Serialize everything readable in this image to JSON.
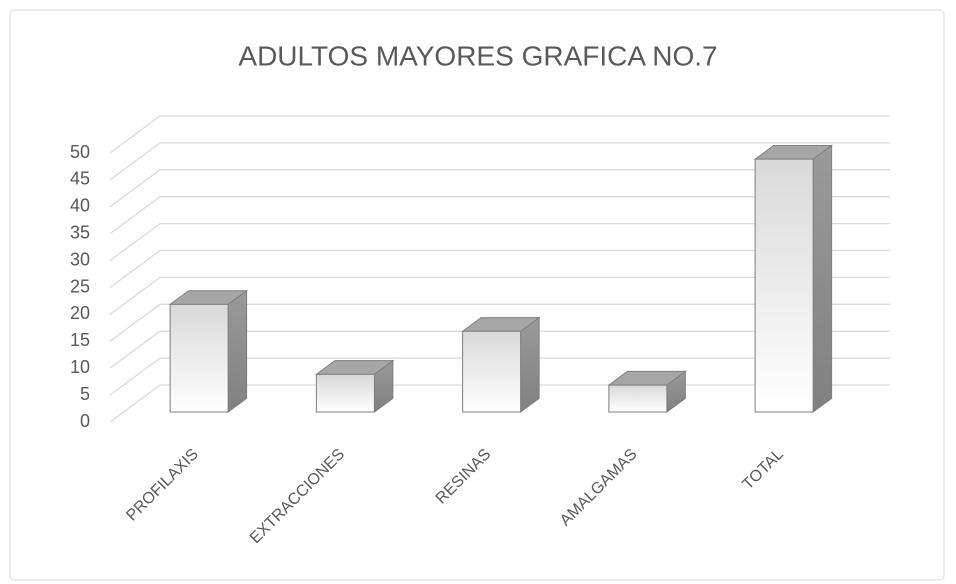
{
  "chart_data": {
    "type": "bar3d",
    "title": "ADULTOS MAYORES GRAFICA NO.7",
    "categories": [
      "PROFILAXIS",
      "EXTRACCIONES",
      "RESINAS",
      "AMALGAMAS",
      "TOTAL"
    ],
    "values": [
      20,
      7,
      15,
      5,
      47
    ],
    "ylim": [
      0,
      50
    ],
    "yticks": [
      0,
      5,
      10,
      15,
      20,
      25,
      30,
      35,
      40,
      45,
      50
    ],
    "grid": true
  }
}
